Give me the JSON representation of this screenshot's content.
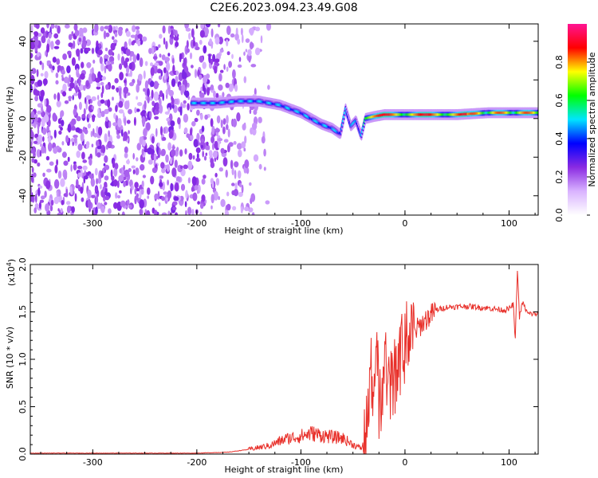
{
  "title": "C2E6.2023.094.23.49.G08",
  "colors": {
    "snr_line": "#e8302a",
    "colorbar": [
      "#ffffff",
      "#d9b3ff",
      "#8a2be2",
      "#0000ff",
      "#00e5ff",
      "#00ff00",
      "#ffff00",
      "#ff0000",
      "#ff1493"
    ]
  },
  "chart_data": [
    {
      "type": "heatmap",
      "xlabel": "Height of straight line (km)",
      "ylabel": "Frequency (Hz)",
      "xlim": [
        -360,
        128
      ],
      "ylim": [
        -50,
        49
      ],
      "xticks": [
        -300,
        -200,
        -100,
        0,
        100
      ],
      "yticks": [
        -40,
        -20,
        0,
        20,
        40
      ],
      "colorbar": {
        "label": "Normalized spectral amplitude",
        "ticks": [
          0.0,
          0.2,
          0.4,
          0.6,
          0.8
        ],
        "tick_labels": [
          "0.0",
          "0.2",
          "0.4",
          "0.6",
          "0.8"
        ],
        "range": [
          0,
          1
        ]
      },
      "ridge": {
        "x": [
          -200,
          -180,
          -160,
          -140,
          -120,
          -100,
          -90,
          -80,
          -70,
          -62,
          -57,
          -52,
          -47,
          -42,
          -38,
          -30,
          -20,
          0,
          20,
          50,
          80,
          100,
          128
        ],
        "y": [
          8,
          8,
          9,
          9,
          7,
          3,
          0,
          -3,
          -5,
          -8,
          5,
          -4,
          -1,
          -9,
          0,
          1,
          2,
          2,
          2,
          2,
          3,
          3,
          3
        ]
      }
    },
    {
      "type": "line",
      "xlabel": "Height of straight line (km)",
      "ylabel": "SNR (10 * v/v)",
      "yscale_label": "(x10",
      "yscale_exp": "4",
      "yscale_close": ")",
      "xlim": [
        -360,
        128
      ],
      "ylim": [
        0,
        2.0
      ],
      "xticks": [
        -300,
        -200,
        -100,
        0,
        100
      ],
      "yticks": [
        0.0,
        0.5,
        1.0,
        1.5,
        2.0
      ],
      "ytick_labels": [
        "0.0",
        "0.5",
        "1.0",
        "1.5",
        "2.0"
      ],
      "series": [
        {
          "x": [
            -360,
            -300,
            -250,
            -200,
            -170,
            -150,
            -130,
            -115,
            -100,
            -90,
            -80,
            -70,
            -60,
            -50,
            -42,
            -38,
            -35,
            -33,
            -30,
            -27,
            -25,
            -20,
            -15,
            -10,
            -5,
            0,
            5,
            10,
            20,
            30,
            40,
            60,
            80,
            95,
            100,
            104,
            106,
            108,
            110,
            113,
            118,
            128
          ],
          "y": [
            0.01,
            0.01,
            0.01,
            0.01,
            0.02,
            0.05,
            0.09,
            0.16,
            0.19,
            0.22,
            0.2,
            0.18,
            0.17,
            0.1,
            0.06,
            0.15,
            0.35,
            1.0,
            0.6,
            1.2,
            0.45,
            0.9,
            0.65,
            0.8,
            0.95,
            1.1,
            1.2,
            1.3,
            1.42,
            1.52,
            1.55,
            1.56,
            1.54,
            1.52,
            1.53,
            1.58,
            1.2,
            1.95,
            1.45,
            1.6,
            1.48,
            1.48
          ]
        }
      ]
    }
  ]
}
